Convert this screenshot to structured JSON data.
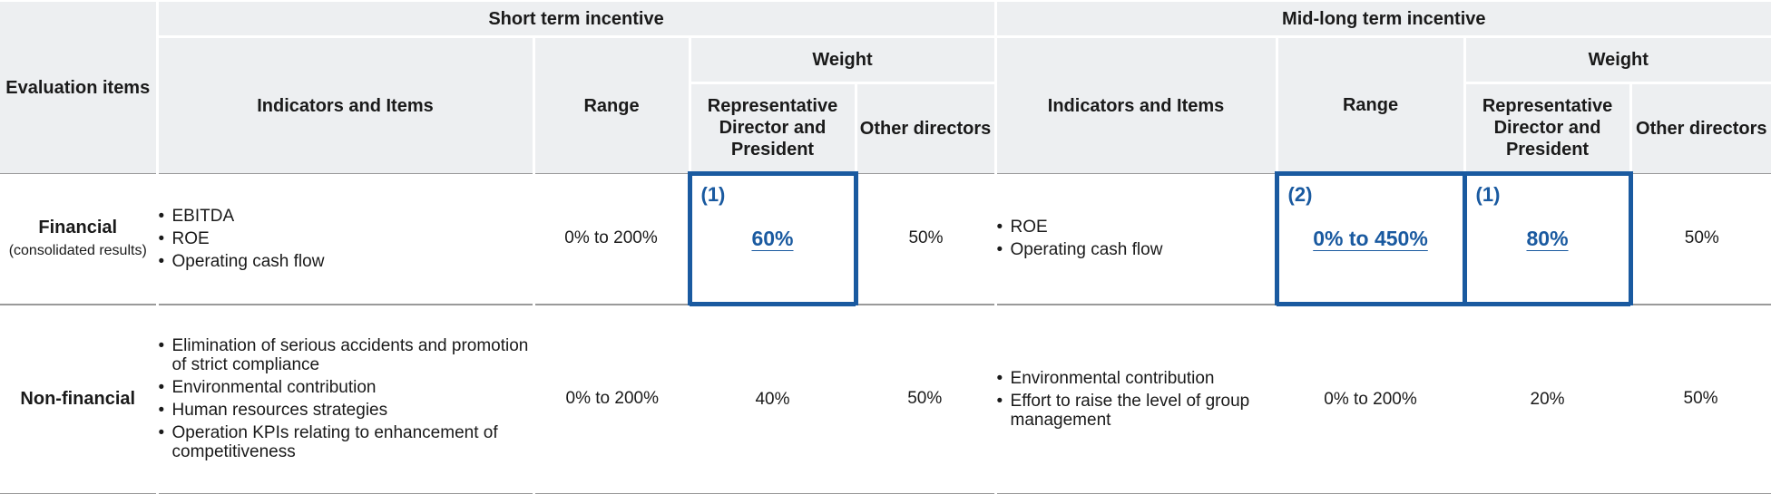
{
  "headers": {
    "evaluation_items": "Evaluation items",
    "short_term": "Short term incentive",
    "mid_long_term": "Mid-long term incentive",
    "indicators_items": "Indicators and Items",
    "range": "Range",
    "weight": "Weight",
    "rep_director": "Representative Director and President",
    "other_directors": "Other directors"
  },
  "rows": {
    "financial": {
      "label": "Financial",
      "sublabel": "(consolidated results)",
      "short": {
        "indicators": [
          "EBITDA",
          "ROE",
          "Operating cash flow"
        ],
        "range": "0% to 200%",
        "rep_weight_mark": "(1)",
        "rep_weight": "60%",
        "other_weight": "50%"
      },
      "mid": {
        "indicators": [
          "ROE",
          "Operating cash flow"
        ],
        "range_mark": "(2)",
        "range": "0% to 450%",
        "rep_weight_mark": "(1)",
        "rep_weight": "80%",
        "other_weight": "50%"
      }
    },
    "non_financial": {
      "label": "Non-financial",
      "short": {
        "indicators": [
          "Elimination of serious accidents and promotion of strict compliance",
          "Environmental contribution",
          "Human resources strategies",
          "Operation KPIs relating to enhancement of competitiveness"
        ],
        "range": "0% to 200%",
        "rep_weight": "40%",
        "other_weight": "50%"
      },
      "mid": {
        "indicators": [
          "Environmental contribution",
          "Effort to raise the level of group management"
        ],
        "range": "0% to 200%",
        "rep_weight": "20%",
        "other_weight": "50%"
      }
    }
  },
  "bullet_glyph": "•",
  "colors": {
    "highlight": "#1a5aa0",
    "header_bg": "#edeff1"
  }
}
